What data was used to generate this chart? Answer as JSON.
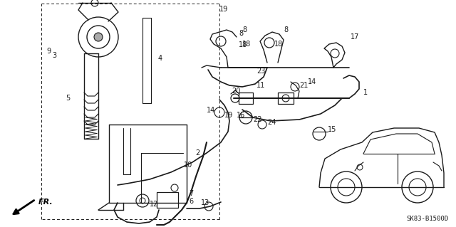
{
  "bg_color": "#ffffff",
  "line_color": "#1a1a1a",
  "diagram_code": "SK83-B1500D",
  "fig_width": 6.4,
  "fig_height": 3.19,
  "dpi": 100
}
